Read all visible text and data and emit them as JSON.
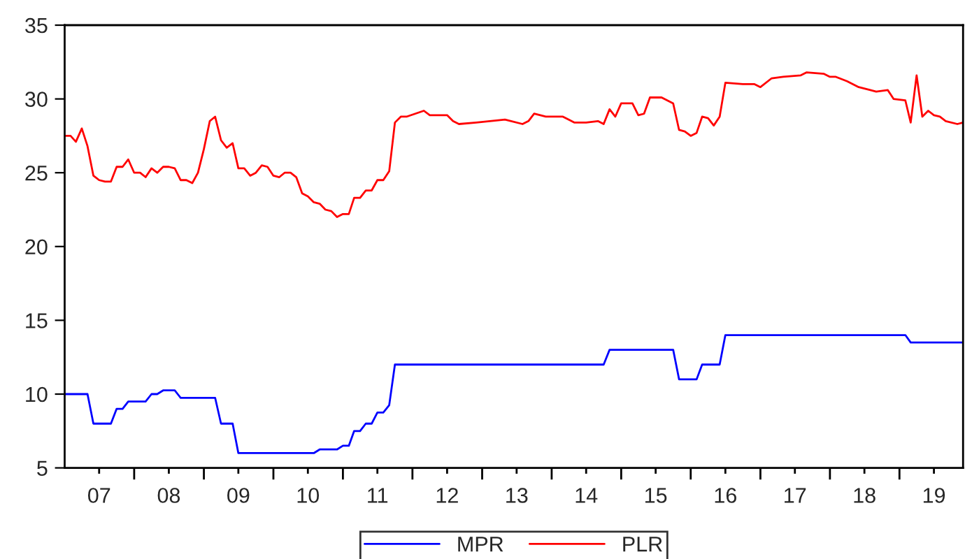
{
  "chart_data": {
    "type": "line",
    "series": [
      {
        "name": "MPR",
        "color": "#0000ff",
        "x": [
          "2007-01",
          "2007-05",
          "2007-06",
          "2007-09",
          "2007-10",
          "2007-11",
          "2007-12",
          "2008-03",
          "2008-04",
          "2008-05",
          "2008-06",
          "2008-08",
          "2008-09",
          "2009-03",
          "2009-04",
          "2009-06",
          "2009-07",
          "2010-08",
          "2010-09",
          "2010-12",
          "2011-01",
          "2011-02",
          "2011-03",
          "2011-04",
          "2011-05",
          "2011-06",
          "2011-07",
          "2011-08",
          "2011-09",
          "2011-10",
          "2014-10",
          "2014-11",
          "2015-10",
          "2015-11",
          "2016-02",
          "2016-03",
          "2016-06",
          "2016-07",
          "2019-02",
          "2019-03",
          "2019-12"
        ],
        "values": [
          10,
          10,
          8,
          8,
          9,
          9,
          9.5,
          9.5,
          10,
          10,
          10.25,
          10.25,
          9.75,
          9.75,
          8,
          8,
          6,
          6,
          6.25,
          6.25,
          6.5,
          6.5,
          7.5,
          7.5,
          8,
          8,
          8.75,
          8.75,
          9.25,
          12,
          12,
          13,
          13,
          11,
          11,
          12,
          12,
          14,
          14,
          13.5,
          13.5
        ]
      },
      {
        "name": "PLR",
        "color": "#ff0000",
        "x": [
          "2007-01",
          "2007-02",
          "2007-03",
          "2007-04",
          "2007-05",
          "2007-06",
          "2007-07",
          "2007-08",
          "2007-09",
          "2007-10",
          "2007-11",
          "2007-12",
          "2008-01",
          "2008-02",
          "2008-03",
          "2008-04",
          "2008-05",
          "2008-06",
          "2008-07",
          "2008-08",
          "2008-09",
          "2008-10",
          "2008-11",
          "2008-12",
          "2009-01",
          "2009-02",
          "2009-03",
          "2009-04",
          "2009-05",
          "2009-06",
          "2009-07",
          "2009-08",
          "2009-09",
          "2009-10",
          "2009-11",
          "2009-12",
          "2010-01",
          "2010-02",
          "2010-03",
          "2010-04",
          "2010-05",
          "2010-06",
          "2010-07",
          "2010-08",
          "2010-09",
          "2010-10",
          "2010-11",
          "2010-12",
          "2011-01",
          "2011-02",
          "2011-03",
          "2011-04",
          "2011-05",
          "2011-06",
          "2011-07",
          "2011-08",
          "2011-09",
          "2011-10",
          "2011-11",
          "2011-12",
          "2012-03",
          "2012-04",
          "2012-07",
          "2012-08",
          "2012-09",
          "2012-12",
          "2013-05",
          "2013-08",
          "2013-09",
          "2013-10",
          "2013-12",
          "2014-03",
          "2014-04",
          "2014-05",
          "2014-07",
          "2014-09",
          "2014-10",
          "2014-11",
          "2014-12",
          "2015-01",
          "2015-03",
          "2015-04",
          "2015-05",
          "2015-06",
          "2015-08",
          "2015-10",
          "2015-11",
          "2015-12",
          "2016-01",
          "2016-02",
          "2016-03",
          "2016-04",
          "2016-05",
          "2016-06",
          "2016-07",
          "2016-10",
          "2016-12",
          "2017-01",
          "2017-03",
          "2017-05",
          "2017-08",
          "2017-09",
          "2017-12",
          "2018-01",
          "2018-02",
          "2018-04",
          "2018-06",
          "2018-08",
          "2018-09",
          "2018-11",
          "2018-12",
          "2019-02",
          "2019-03",
          "2019-04",
          "2019-05",
          "2019-06",
          "2019-07",
          "2019-08",
          "2019-09",
          "2019-11",
          "2019-12"
        ],
        "values": [
          27.5,
          27.5,
          27.1,
          28.0,
          26.8,
          24.8,
          24.5,
          24.4,
          24.4,
          25.4,
          25.4,
          25.9,
          25.0,
          25.0,
          24.7,
          25.3,
          25.0,
          25.4,
          25.4,
          25.3,
          24.5,
          24.5,
          24.3,
          25.0,
          26.6,
          28.5,
          28.8,
          27.2,
          26.7,
          27.0,
          25.3,
          25.3,
          24.8,
          25.0,
          25.5,
          25.4,
          24.8,
          24.7,
          25.0,
          25.0,
          24.7,
          23.6,
          23.4,
          23.0,
          22.9,
          22.5,
          22.4,
          22.0,
          22.2,
          22.2,
          23.3,
          23.3,
          23.8,
          23.8,
          24.5,
          24.5,
          25.1,
          28.4,
          28.8,
          28.8,
          29.2,
          28.9,
          28.9,
          28.5,
          28.3,
          28.4,
          28.6,
          28.3,
          28.5,
          29.0,
          28.8,
          28.8,
          28.6,
          28.4,
          28.4,
          28.5,
          28.3,
          29.3,
          28.8,
          29.7,
          29.7,
          28.9,
          29.0,
          30.1,
          30.1,
          29.7,
          27.9,
          27.8,
          27.5,
          27.7,
          28.8,
          28.7,
          28.2,
          28.8,
          31.1,
          31.0,
          31.0,
          30.8,
          31.4,
          31.5,
          31.6,
          31.8,
          31.7,
          31.5,
          31.5,
          31.2,
          30.8,
          30.6,
          30.5,
          30.6,
          30.0,
          29.9,
          28.4,
          31.6,
          28.8,
          29.2,
          28.9,
          28.8,
          28.5,
          28.3,
          28.4
        ]
      }
    ],
    "xlim": [
      "2007-01",
      "2019-12"
    ],
    "xticks": [
      {
        "value": "2007-07",
        "label": "07"
      },
      {
        "value": "2008-01",
        "label": null
      },
      {
        "value": "2008-07",
        "label": "08"
      },
      {
        "value": "2009-01",
        "label": null
      },
      {
        "value": "2009-07",
        "label": "09"
      },
      {
        "value": "2010-01",
        "label": null
      },
      {
        "value": "2010-07",
        "label": "10"
      },
      {
        "value": "2011-01",
        "label": null
      },
      {
        "value": "2011-07",
        "label": "11"
      },
      {
        "value": "2012-01",
        "label": null
      },
      {
        "value": "2012-07",
        "label": "12"
      },
      {
        "value": "2013-01",
        "label": null
      },
      {
        "value": "2013-07",
        "label": "13"
      },
      {
        "value": "2014-01",
        "label": null
      },
      {
        "value": "2014-07",
        "label": "14"
      },
      {
        "value": "2015-01",
        "label": null
      },
      {
        "value": "2015-07",
        "label": "15"
      },
      {
        "value": "2016-01",
        "label": null
      },
      {
        "value": "2016-07",
        "label": "16"
      },
      {
        "value": "2017-01",
        "label": null
      },
      {
        "value": "2017-07",
        "label": "17"
      },
      {
        "value": "2018-01",
        "label": null
      },
      {
        "value": "2018-07",
        "label": "18"
      },
      {
        "value": "2019-01",
        "label": null
      },
      {
        "value": "2019-07",
        "label": "19"
      }
    ],
    "ylim": [
      5,
      35
    ],
    "yticks": [
      5,
      10,
      15,
      20,
      25,
      30,
      35
    ],
    "grid": false,
    "legend": "bottom",
    "line_style": "solid",
    "marker": "none"
  }
}
